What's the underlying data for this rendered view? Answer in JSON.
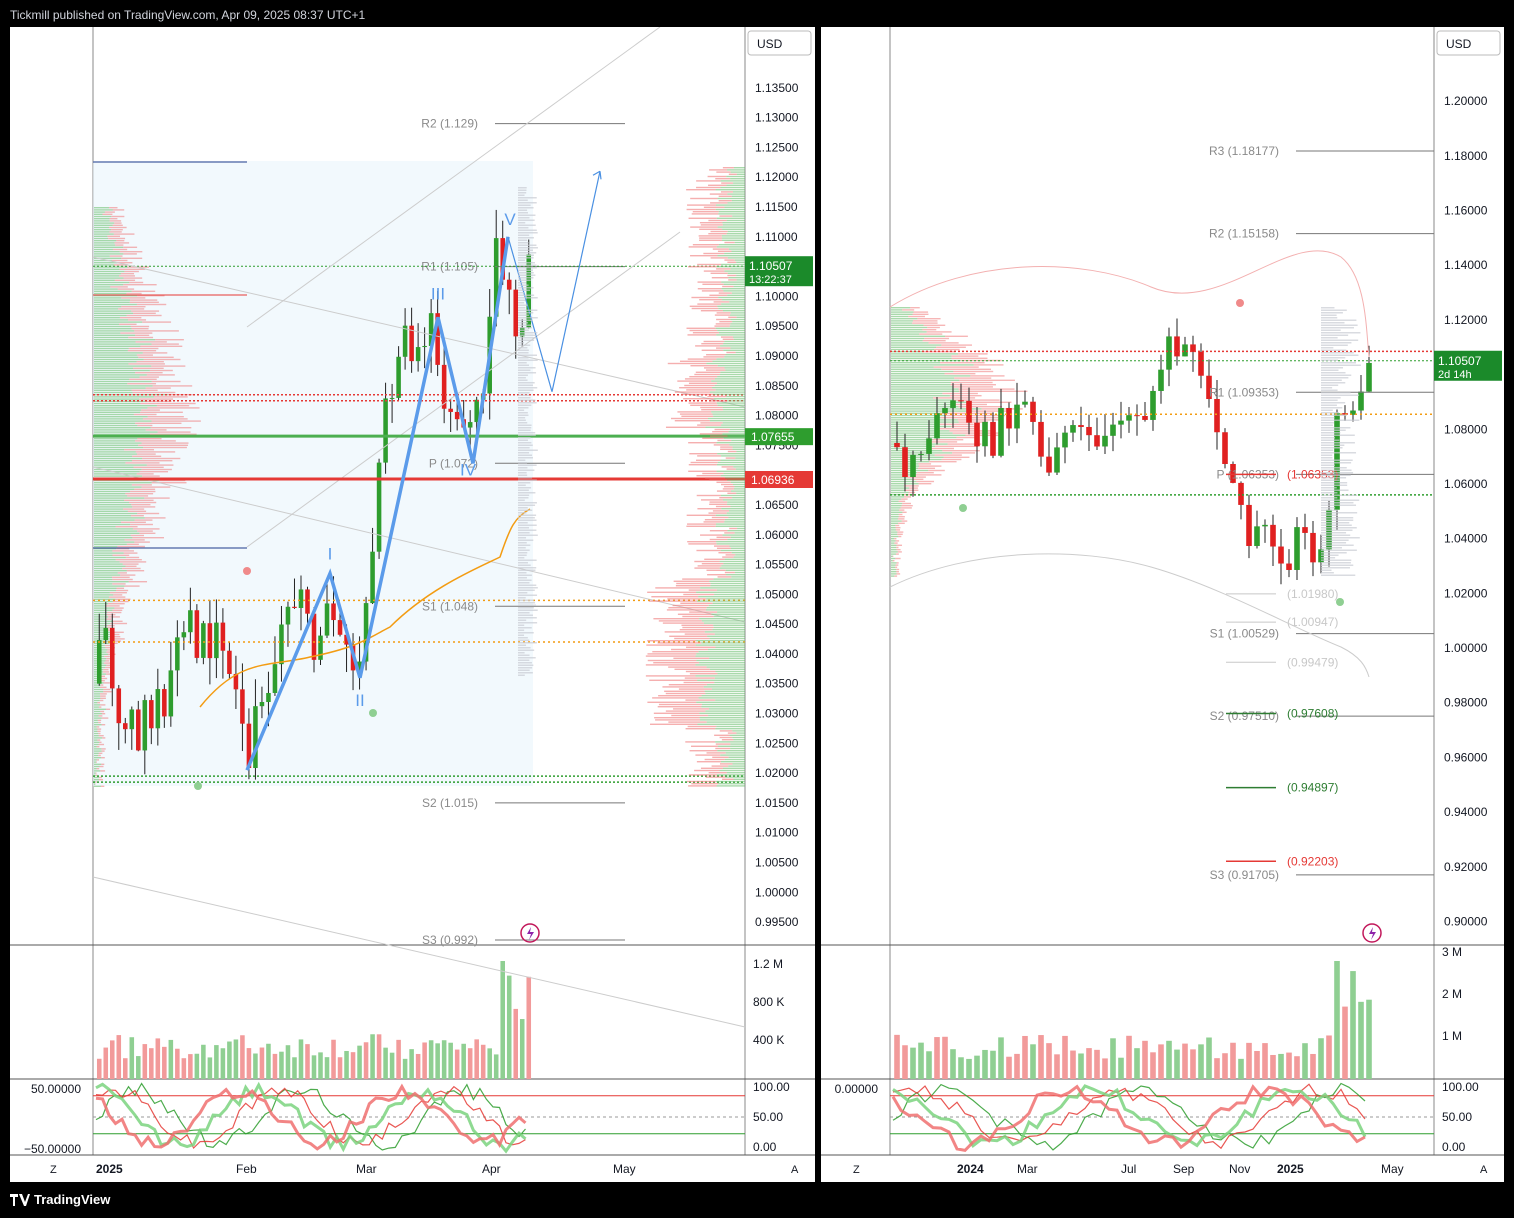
{
  "header": {
    "publisher": "Tickmill published on TradingView.com, Apr 09, 2025 08:37 UTC+1"
  },
  "footer": {
    "brand": "TradingView"
  },
  "colors": {
    "up": "#2e9d2e",
    "down": "#e02020",
    "green_line": "#4caf50",
    "red_line": "#e53935",
    "orange": "#f39c12",
    "blue": "#4a90e2",
    "price_tag": "#1b8a2a"
  },
  "chart_data": [
    {
      "type": "candlestick",
      "currency": "USD",
      "x_labels": [
        "2025",
        "Feb",
        "Mar",
        "Apr",
        "May"
      ],
      "y_ticks": [
        "1.13500",
        "1.13000",
        "1.12500",
        "1.12000",
        "1.11500",
        "1.11000",
        "1.10000",
        "1.09500",
        "1.09000",
        "1.08500",
        "1.08000",
        "1.07500",
        "1.06500",
        "1.06000",
        "1.05500",
        "1.05000",
        "1.04500",
        "1.04000",
        "1.03500",
        "1.03000",
        "1.02500",
        "1.02000",
        "1.01500",
        "1.01000",
        "1.00500",
        "1.00000",
        "0.99500"
      ],
      "ylim": [
        0.9925,
        1.1385
      ],
      "price": {
        "value": "1.10507",
        "countdown": "13:22:37"
      },
      "levels": {
        "green": "1.07655",
        "red": "1.06936"
      },
      "pivots": [
        {
          "label": "R2 (1.129)",
          "value": 1.129
        },
        {
          "label": "R1 (1.105)",
          "value": 1.105
        },
        {
          "label": "P (1.072)",
          "value": 1.072
        },
        {
          "label": "S1 (1.048)",
          "value": 1.048
        },
        {
          "label": "S2 (1.015)",
          "value": 1.015
        },
        {
          "label": "S3 (0.992)",
          "value": 0.992
        }
      ],
      "waves": [
        "I",
        "II",
        "III",
        "IV",
        "V"
      ],
      "volume_ticks": [
        "1.2 M",
        "800 K",
        "400 K"
      ],
      "osc_left_ticks": [
        "50.00000",
        "−50.00000"
      ],
      "osc_right_ticks": [
        "100.00",
        "50.00",
        "0.00"
      ],
      "nav": [
        "Z",
        "A"
      ]
    },
    {
      "type": "candlestick",
      "currency": "USD",
      "x_labels": [
        "2024",
        "Mar",
        "Jul",
        "Sep",
        "Nov",
        "2025",
        "May"
      ],
      "y_ticks": [
        "1.20000",
        "1.18000",
        "1.16000",
        "1.14000",
        "1.12000",
        "1.08000",
        "1.06000",
        "1.04000",
        "1.02000",
        "1.00000",
        "0.98000",
        "0.96000",
        "0.94000",
        "0.92000",
        "0.90000"
      ],
      "ylim": [
        0.8925,
        1.2125
      ],
      "price": {
        "value": "1.10507",
        "countdown": "2d 14h"
      },
      "pivots": [
        {
          "label": "R3 (1.18177)",
          "value": 1.18177
        },
        {
          "label": "R2 (1.15158)",
          "value": 1.15158
        },
        {
          "label": "R1 (1.09353)",
          "value": 1.09353
        },
        {
          "label": "P (1.06353)",
          "value": 1.06353
        },
        {
          "label": "S1 (1.00529)",
          "value": 1.00529
        },
        {
          "label": "S2 (0.97510)",
          "value": 0.9751
        },
        {
          "label": "S3 (0.91705)",
          "value": 0.91705
        }
      ],
      "extra_levels": [
        {
          "label": "(1.06353)",
          "value": 1.06353,
          "color": "#e53935"
        },
        {
          "label": "(1.01980)",
          "value": 1.0198,
          "color": "#c8c8c8"
        },
        {
          "label": "(1.00947)",
          "value": 1.00947,
          "color": "#c8c8c8"
        },
        {
          "label": "(0.99479)",
          "value": 0.99479,
          "color": "#c8c8c8"
        },
        {
          "label": "(0.97608)",
          "value": 0.97608,
          "color": "#2e7d32"
        },
        {
          "label": "(0.94897)",
          "value": 0.94897,
          "color": "#2e7d32"
        },
        {
          "label": "(0.92203)",
          "value": 0.92203,
          "color": "#e53935"
        }
      ],
      "volume_ticks": [
        "3 M",
        "2 M",
        "1 M"
      ],
      "osc_left_ticks": [
        "0.00000"
      ],
      "osc_right_ticks": [
        "100.00",
        "50.00",
        "0.00"
      ],
      "nav": [
        "Z",
        "A"
      ]
    }
  ]
}
